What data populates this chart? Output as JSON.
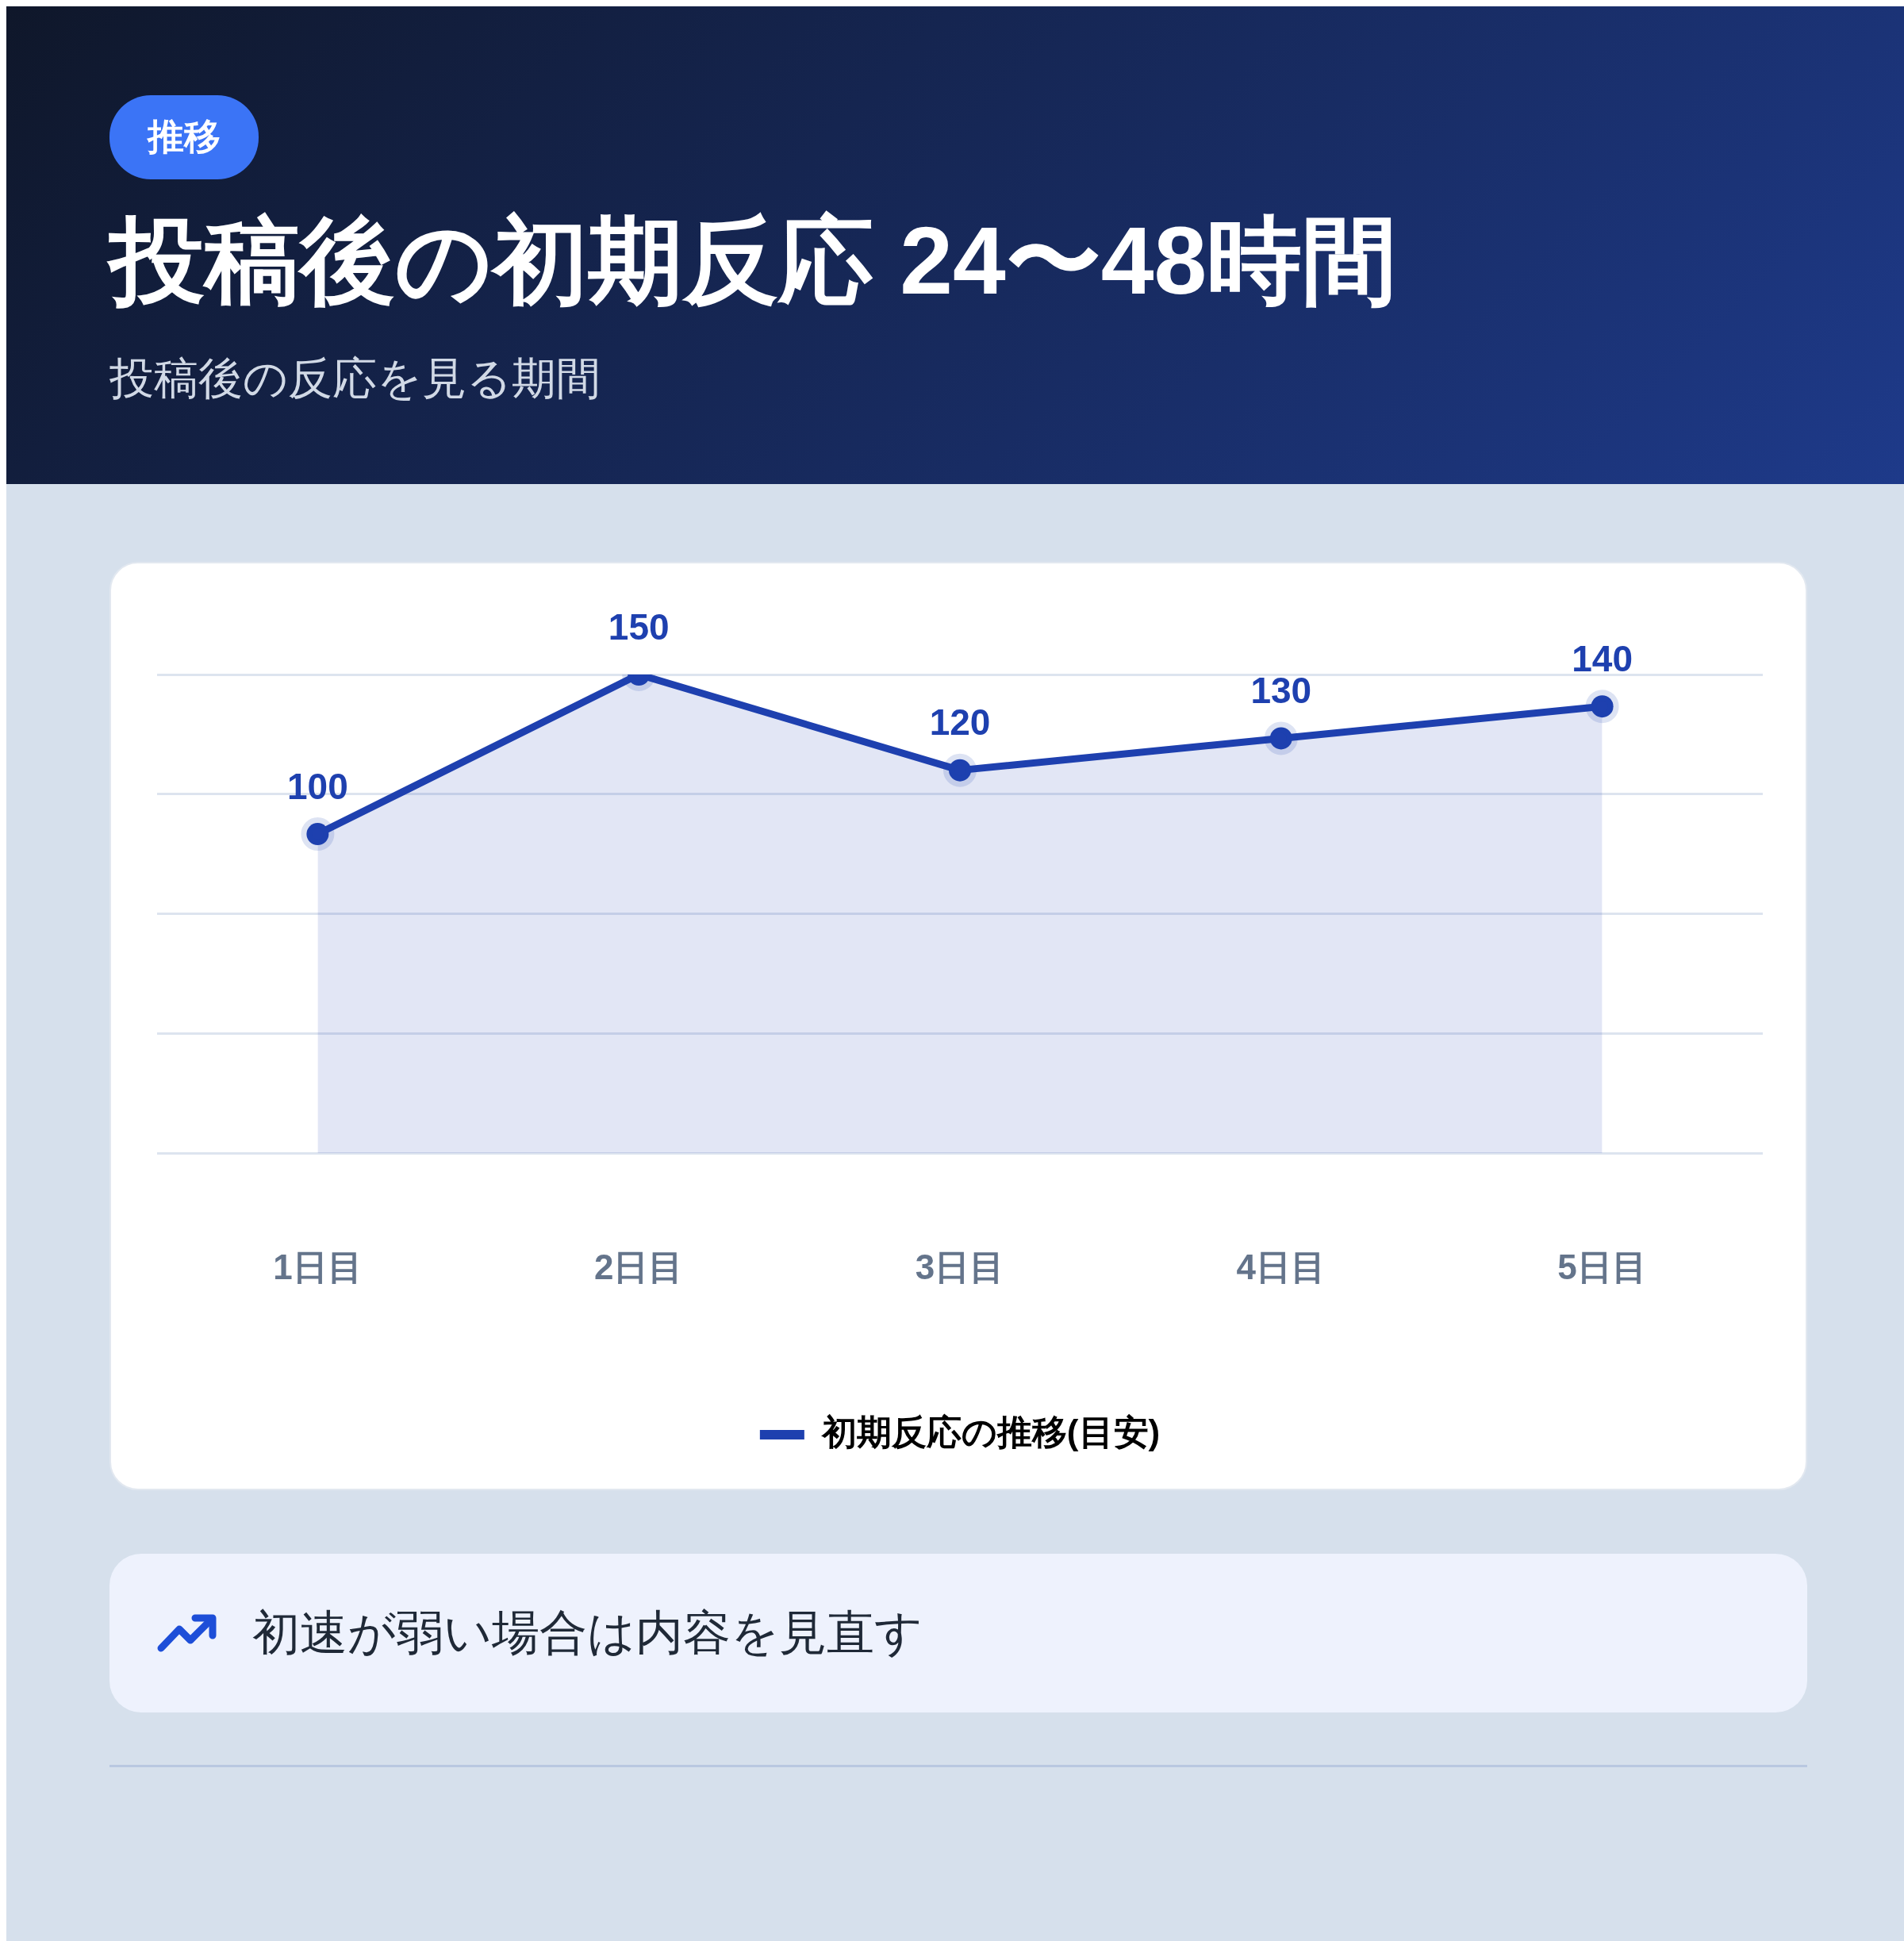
{
  "chart_data": {
    "type": "area",
    "title": "投稿後の初期反応 24〜48時間",
    "subtitle": "投稿後の反応を見る期間",
    "annotations": [
      "推移",
      "初速が弱い場合は内容を見直す"
    ],
    "categories": [
      "1日目",
      "2日目",
      "3日目",
      "4日目",
      "5日目"
    ],
    "series": [
      {
        "name": "初期反応の推移(目安)",
        "color": "#1e40af",
        "values": [
          100,
          150,
          120,
          130,
          140
        ]
      }
    ],
    "ylim": [
      0,
      150
    ],
    "yticks": [
      {
        "value": 0,
        "label": null
      },
      {
        "value": 37.5,
        "label": null
      },
      {
        "value": 75,
        "label": null
      },
      {
        "value": 112.5,
        "label": null
      },
      {
        "value": 150,
        "label": null
      }
    ],
    "tick_labels": "x",
    "grid": "y",
    "legend": "bottom",
    "marker": "circle",
    "data_labels": true
  }
}
